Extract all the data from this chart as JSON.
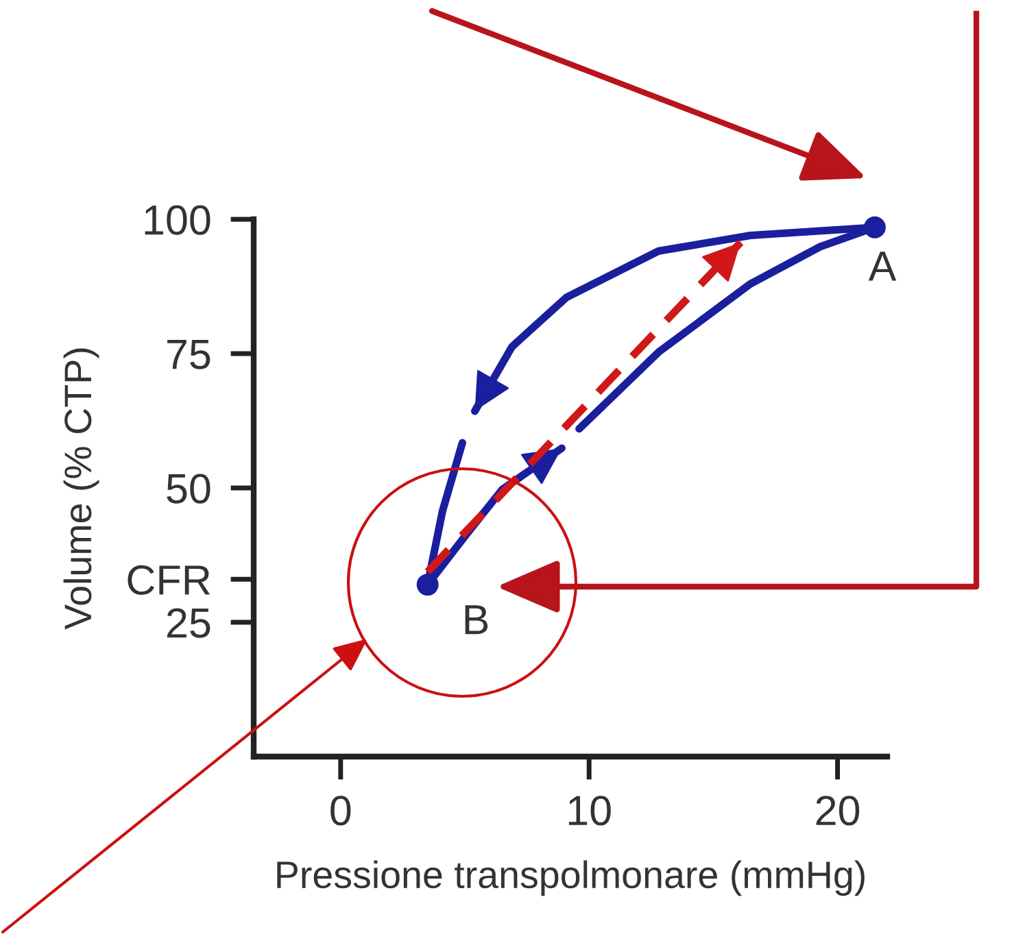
{
  "chart_data": {
    "type": "line",
    "xlabel": "Pressione transpolmonare (mmHg)",
    "ylabel": "Volume (% CTP)",
    "xlim": [
      -3.5,
      22
    ],
    "ylim": [
      0,
      100
    ],
    "xticks": [
      0,
      10,
      20
    ],
    "yticks": [
      25,
      {
        "value": 33,
        "label": "CFR"
      },
      50,
      75,
      100
    ],
    "grid": false,
    "legend": false,
    "series": [
      {
        "color": "#1a1f9e",
        "x": [
          3.5,
          5.0,
          6.5,
          8.9
        ],
        "values": [
          32,
          41,
          49.7,
          57.4
        ]
      },
      {
        "color": "#1a1f9e",
        "x": [
          9.6,
          12.8,
          16.5,
          19.3,
          21.5
        ],
        "values": [
          61,
          75.3,
          88,
          94.9,
          98.5
        ]
      },
      {
        "color": "#1a1f9e",
        "x": [
          21.5,
          16.5,
          12.8,
          9.1,
          6.9,
          5.4
        ],
        "values": [
          98.5,
          97,
          94.1,
          85.5,
          76.3,
          64.3
        ]
      },
      {
        "color": "#1a1f9e",
        "x": [
          4.9,
          4.1,
          3.5
        ],
        "values": [
          58.4,
          45.7,
          32
        ]
      },
      {
        "color": "#d01818",
        "line_style": "dashed",
        "x": [
          3.5,
          16.1
        ],
        "values": [
          34.4,
          95.7
        ]
      },
      {
        "type": "scatter",
        "color": "#1a1f9e",
        "marker": "circle",
        "x": [
          21.5,
          3.5
        ],
        "values": [
          98.5,
          32
        ]
      }
    ],
    "annotations": [
      {
        "text": "A",
        "x": 21.5,
        "y": 98.5
      },
      {
        "text": "B",
        "x": 3.5,
        "y": 32
      }
    ]
  }
}
